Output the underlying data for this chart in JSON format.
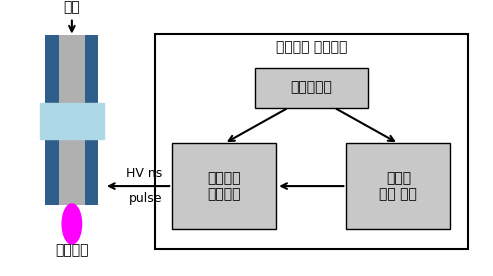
{
  "title_nano": "나노펄스 구동회로",
  "label_gas": "가스",
  "label_plasma": "플라즈마",
  "label_hv": "HV ns",
  "label_pulse": "pulse",
  "label_pulse_ctrl": "펄스제어부",
  "label_nano_driver": "나노펄스\n드라이버",
  "label_hv_power": "고전압\n전원 장치",
  "bg_color": "#ffffff",
  "box_color": "#c8c8c8",
  "outer_box_color": "#d0d0d0",
  "dark_blue": "#2e5f8a",
  "light_blue": "#add8e6",
  "gray": "#b0b0b0",
  "magenta": "#ff00ff",
  "text_color": "#000000"
}
